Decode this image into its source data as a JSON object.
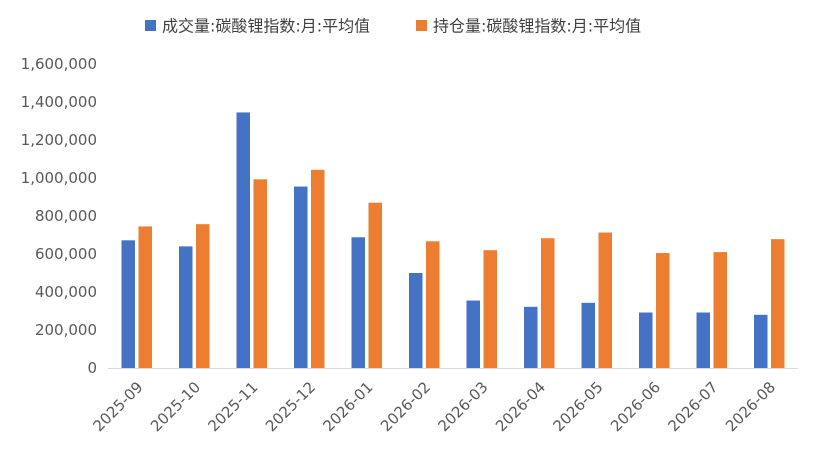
{
  "chart_data": {
    "type": "bar",
    "title": "",
    "xlabel": "",
    "ylabel": "",
    "categories": [
      "2025-09",
      "2025-10",
      "2025-11",
      "2025-12",
      "2026-01",
      "2026-02",
      "2026-03",
      "2026-04",
      "2026-05",
      "2026-06",
      "2026-07",
      "2026-08"
    ],
    "series": [
      {
        "name": "成交量:碳酸锂指数:月:平均值",
        "color": "#4472C4",
        "values": [
          672000,
          640000,
          1345000,
          955000,
          688000,
          500000,
          355000,
          322000,
          343000,
          292000,
          292000,
          280000
        ]
      },
      {
        "name": "持仓量:碳酸锂指数:月:平均值",
        "color": "#ED7D31",
        "values": [
          745000,
          757000,
          993000,
          1043000,
          870000,
          667000,
          620000,
          683000,
          713000,
          605000,
          610000,
          678000
        ]
      }
    ],
    "ylim": [
      0,
      1600000
    ],
    "yticks": [
      0,
      200000,
      400000,
      600000,
      800000,
      1000000,
      1200000,
      1400000,
      1600000
    ],
    "ytick_labels": [
      "0",
      "200,000",
      "400,000",
      "600,000",
      "800,000",
      "1,000,000",
      "1,200,000",
      "1,400,000",
      "1,600,000"
    ],
    "grid": false,
    "legend_position": "top-center"
  },
  "colors": {
    "axis": "#d9d9d9",
    "text": "#595959"
  }
}
